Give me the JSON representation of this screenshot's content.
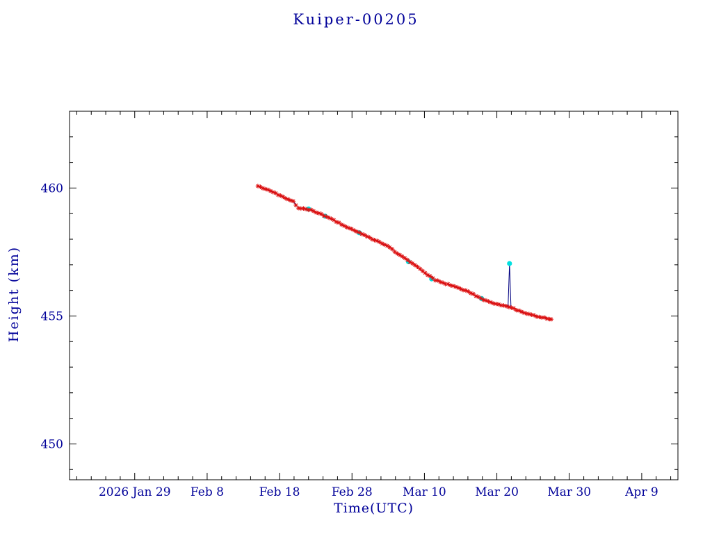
{
  "chart_data": {
    "type": "line",
    "title": "Kuiper-00205",
    "xlabel": "Time(UTC)",
    "ylabel": "Height (km)",
    "x_encoding": "day-of-year-2026",
    "xlim": [
      20,
      104
    ],
    "ylim": [
      448.6,
      463.0
    ],
    "x_major_ticks": [
      {
        "day": 29,
        "label": "2026 Jan 29"
      },
      {
        "day": 39,
        "label": "Feb 8"
      },
      {
        "day": 49,
        "label": "Feb 18"
      },
      {
        "day": 59,
        "label": "Feb 28"
      },
      {
        "day": 69,
        "label": "Mar 10"
      },
      {
        "day": 79,
        "label": "Mar 20"
      },
      {
        "day": 89,
        "label": "Mar 30"
      },
      {
        "day": 99,
        "label": "Apr 9"
      }
    ],
    "x_minor_step": 2,
    "y_major_ticks": [
      {
        "value": 450,
        "label": "450"
      },
      {
        "value": 455,
        "label": "455"
      },
      {
        "value": 460,
        "label": "460"
      }
    ],
    "y_minor_step": 1,
    "colors": {
      "frame": "#000000",
      "text": "#000099",
      "trend_line": "#000080",
      "measurement_marker": "#dd1111",
      "flagged_point": "#00e0e0"
    },
    "series": {
      "name": "orbit-height-trend",
      "knots": [
        [
          46.0,
          460.08
        ],
        [
          47.5,
          459.92
        ],
        [
          49.0,
          459.72
        ],
        [
          50.3,
          459.55
        ],
        [
          51.15,
          459.46
        ],
        [
          51.35,
          459.22
        ],
        [
          53.3,
          459.15
        ],
        [
          55.5,
          458.88
        ],
        [
          59.0,
          458.38
        ],
        [
          61.5,
          458.05
        ],
        [
          63.8,
          457.75
        ],
        [
          66.0,
          457.3
        ],
        [
          67.6,
          457.0
        ],
        [
          69.0,
          456.7
        ],
        [
          70.4,
          456.42
        ],
        [
          72.0,
          456.25
        ],
        [
          73.3,
          456.15
        ],
        [
          75.0,
          455.95
        ],
        [
          77.1,
          455.65
        ],
        [
          79.0,
          455.45
        ],
        [
          80.6,
          455.37
        ],
        [
          81.0,
          455.32
        ],
        [
          82.8,
          455.12
        ],
        [
          84.5,
          454.98
        ],
        [
          86.5,
          454.87
        ]
      ],
      "sample_step_days": 0.35,
      "jitter_km": 0.018
    },
    "spike": {
      "day": 80.75,
      "peak": 457.05,
      "width_days": 0.4
    },
    "flagged_points": [
      [
        53.0,
        459.18
      ],
      [
        55.3,
        458.9
      ],
      [
        60.0,
        458.25
      ],
      [
        66.8,
        457.12
      ],
      [
        70.0,
        456.45
      ],
      [
        76.9,
        455.68
      ],
      [
        80.75,
        457.05
      ]
    ]
  }
}
